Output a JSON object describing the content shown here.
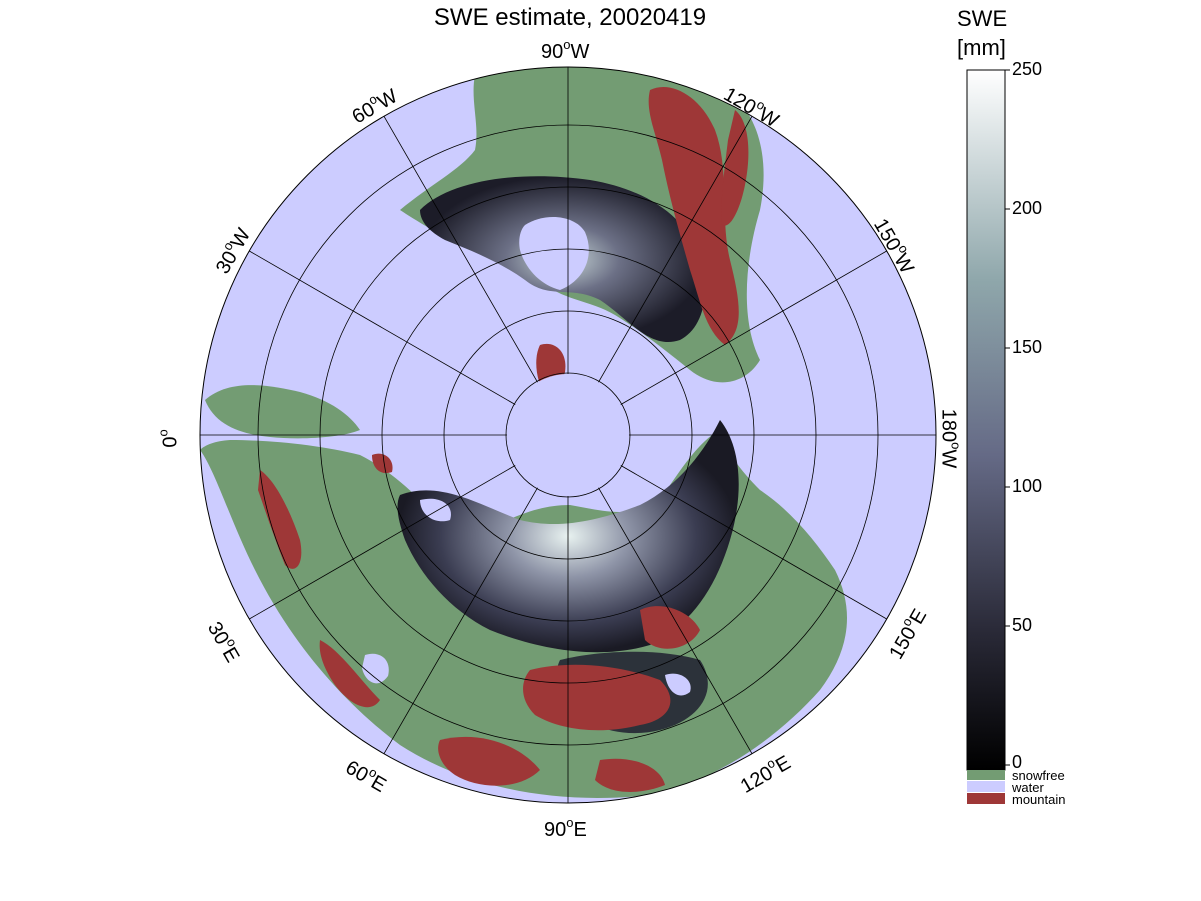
{
  "title": "SWE estimate, 20020419",
  "longitude_labels": [
    {
      "text": "90",
      "hem": "W"
    },
    {
      "text": "120",
      "hem": "W"
    },
    {
      "text": "150",
      "hem": "W"
    },
    {
      "text": "180",
      "hem": "W"
    },
    {
      "text": "150",
      "hem": "E"
    },
    {
      "text": "120",
      "hem": "E"
    },
    {
      "text": "90",
      "hem": "E"
    },
    {
      "text": "60",
      "hem": "E"
    },
    {
      "text": "30",
      "hem": "E"
    },
    {
      "text": "0",
      "hem": ""
    },
    {
      "text": "30",
      "hem": "W"
    },
    {
      "text": "60",
      "hem": "W"
    }
  ],
  "colorbar": {
    "title_line1": "SWE",
    "title_line2": "[mm]",
    "ticks": [
      "250",
      "200",
      "150",
      "100",
      "50",
      "0"
    ],
    "range": [
      0,
      250
    ],
    "categories": [
      {
        "label": "snowfree",
        "color": "#739c73"
      },
      {
        "label": "water",
        "color": "#ccccff"
      },
      {
        "label": "mountain",
        "color": "#9e3737"
      }
    ]
  },
  "colors": {
    "water": "#ccccff",
    "land": "#739c73",
    "mountain": "#9e3737",
    "snow_low": "#0b0b12",
    "snow_high": "#ffffff"
  }
}
